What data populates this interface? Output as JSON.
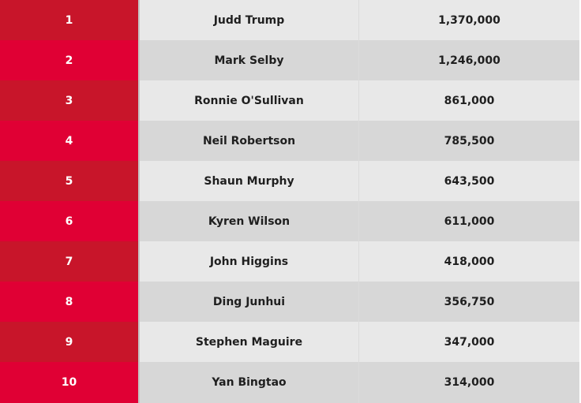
{
  "colors": {
    "rank_odd": "#c8152a",
    "rank_even": "#e00034",
    "row_odd": "#e8e8e8",
    "row_even": "#d7d7d7"
  },
  "rows": [
    {
      "rank": "1",
      "name": "Judd Trump",
      "points": "1,370,000"
    },
    {
      "rank": "2",
      "name": "Mark Selby",
      "points": "1,246,000"
    },
    {
      "rank": "3",
      "name": "Ronnie O'Sullivan",
      "points": "861,000"
    },
    {
      "rank": "4",
      "name": "Neil Robertson",
      "points": "785,500"
    },
    {
      "rank": "5",
      "name": "Shaun Murphy",
      "points": "643,500"
    },
    {
      "rank": "6",
      "name": "Kyren Wilson",
      "points": "611,000"
    },
    {
      "rank": "7",
      "name": "John Higgins",
      "points": "418,000"
    },
    {
      "rank": "8",
      "name": "Ding Junhui",
      "points": "356,750"
    },
    {
      "rank": "9",
      "name": "Stephen Maguire",
      "points": "347,000"
    },
    {
      "rank": "10",
      "name": "Yan Bingtao",
      "points": "314,000"
    }
  ]
}
